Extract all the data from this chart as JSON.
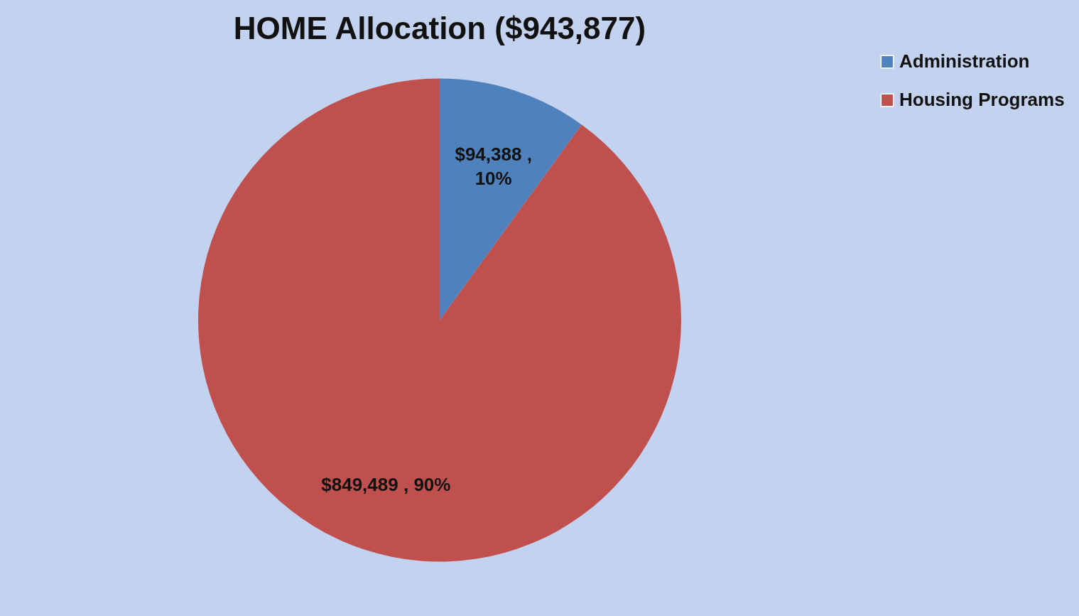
{
  "chart_data": {
    "type": "pie",
    "title": "HOME Allocation ($943,877)",
    "categories": [
      "Administration",
      "Housing Programs"
    ],
    "values": [
      94388,
      849489
    ],
    "colors": [
      "#4f81bd",
      "#c0504d"
    ],
    "value_labels": [
      "$94,388 , 10%",
      "$849,489 , 90%"
    ],
    "legend": "right"
  }
}
